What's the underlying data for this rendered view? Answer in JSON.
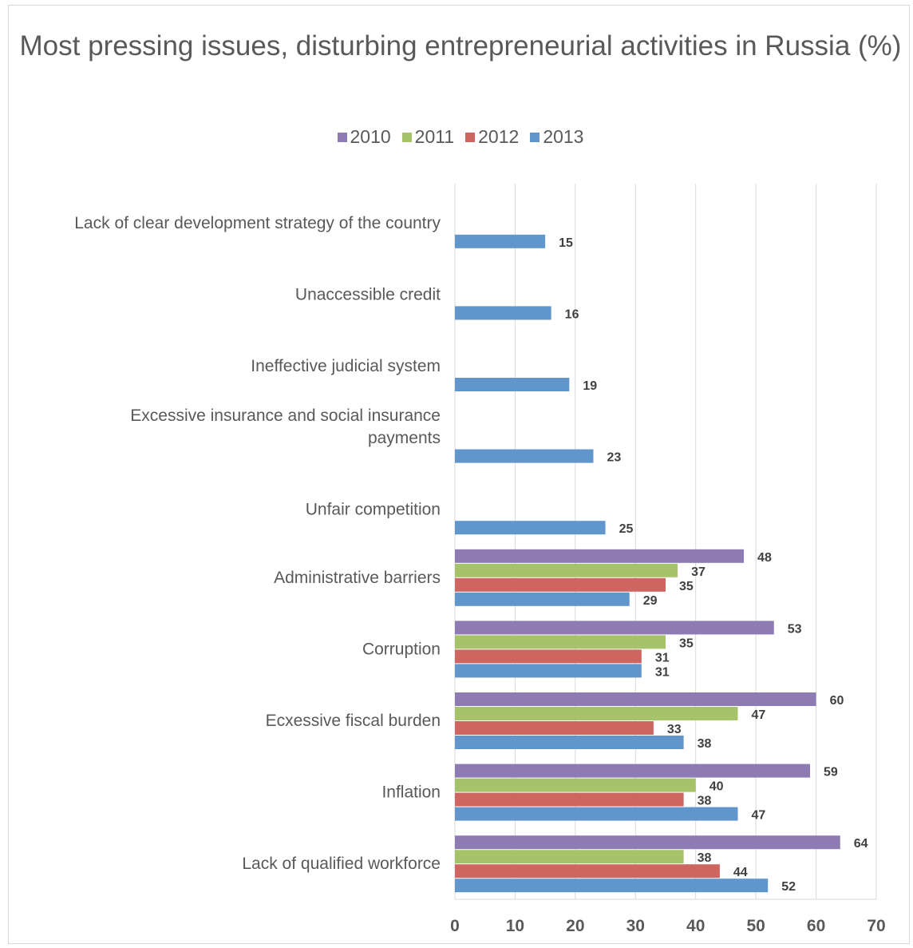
{
  "chart_data": {
    "type": "bar",
    "orientation": "horizontal",
    "title": "Most pressing issues, disturbing entrepreneurial activities in Russia (%)",
    "legend_position": "top",
    "xlim": [
      0,
      70
    ],
    "x_ticks": [
      "0",
      "10",
      "20",
      "30",
      "40",
      "50",
      "60",
      "70"
    ],
    "grid": true,
    "categories": [
      {
        "lines": [
          "Lack of clear development strategy of the country"
        ]
      },
      {
        "lines": [
          "Unaccessible credit"
        ]
      },
      {
        "lines": [
          "Ineffective judicial system"
        ]
      },
      {
        "lines": [
          "Excessive insurance and social insurance",
          "payments"
        ]
      },
      {
        "lines": [
          "Unfair competition"
        ]
      },
      {
        "lines": [
          "Administrative barriers"
        ]
      },
      {
        "lines": [
          "Corruption"
        ]
      },
      {
        "lines": [
          "Ecxessive fiscal burden"
        ]
      },
      {
        "lines": [
          "Inflation"
        ]
      },
      {
        "lines": [
          "Lack of qualified workforce"
        ]
      }
    ],
    "series": [
      {
        "name": "2010",
        "color": "#8f7bb4",
        "values": [
          null,
          null,
          null,
          null,
          null,
          48,
          53,
          60,
          59,
          64
        ]
      },
      {
        "name": "2011",
        "color": "#a6c36a",
        "values": [
          null,
          null,
          null,
          null,
          null,
          37,
          35,
          47,
          40,
          38
        ]
      },
      {
        "name": "2012",
        "color": "#cf6560",
        "values": [
          null,
          null,
          null,
          null,
          null,
          35,
          31,
          33,
          38,
          44
        ]
      },
      {
        "name": "2013",
        "color": "#6096cc",
        "values": [
          15,
          16,
          19,
          23,
          25,
          29,
          31,
          38,
          47,
          52
        ]
      }
    ]
  }
}
